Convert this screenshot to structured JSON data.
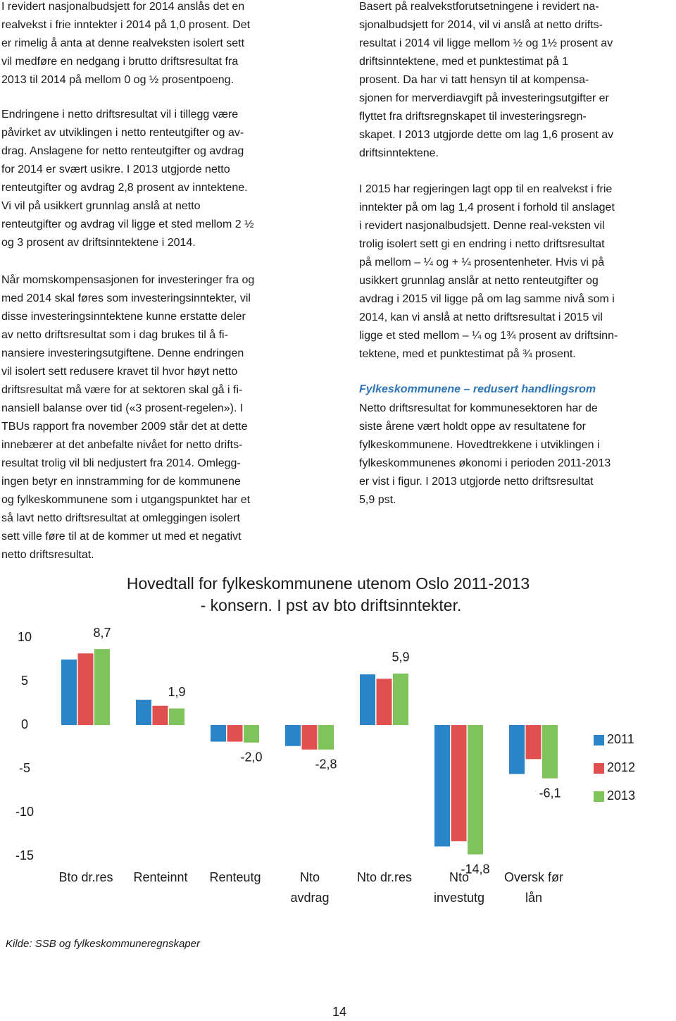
{
  "left_column": {
    "paragraphs": [
      [
        "I revidert nasjonalbudsjett for 2014 anslås det en",
        "realvekst i frie inntekter i 2014 på 1,0 prosent. Det",
        "er rimelig å anta at denne realveksten isolert sett",
        "vil medføre en nedgang i brutto driftsresultat fra",
        "2013 til 2014 på mellom 0 og ½ prosentpoeng."
      ],
      [
        "Endringene i netto driftsresultat vil i tillegg være",
        "påvirket av utviklingen i netto renteutgifter og av-",
        "drag. Anslagene for netto renteutgifter og avdrag",
        "for 2014 er svært usikre. I 2013 utgjorde netto",
        "renteutgifter og avdrag 2,8 prosent av inntektene.",
        "Vi vil på usikkert grunnlag anslå at netto",
        "renteutgifter og avdrag vil ligge et sted mellom 2 ½",
        "og 3 prosent av driftsinntektene i 2014."
      ],
      [
        "Når momskompensasjonen for investeringer fra og",
        "med 2014 skal føres som investeringsinntekter, vil",
        "disse investeringsinntektene kunne erstatte deler",
        "av netto driftsresultat som i dag brukes til å fi-",
        "nansiere investeringsutgiftene. Denne endringen",
        "vil isolert sett redusere kravet til hvor høyt netto",
        "driftsresultat må være for at sektoren skal gå i fi-",
        "nansiell balanse over tid («3 prosent-regelen»). I",
        "TBUs rapport fra november 2009 står det at dette",
        "innebærer at det anbefalte nivået for netto drifts-",
        "resultat trolig vil bli nedjustert fra 2014. Omlegg-",
        "ingen betyr en innstramming for de kommunene",
        "og fylkeskommunene som i utgangspunktet har et",
        "så lavt netto driftsresultat at omleggingen isolert",
        "sett ville føre til at de kommer ut med et negativt",
        "netto driftsresultat."
      ]
    ]
  },
  "right_column": {
    "paragraphs": [
      [
        "Basert på realvekstforutsetningene i revidert na-",
        "sjonalbudsjett for 2014, vil vi anslå at netto drifts-",
        "resultat i 2014 vil ligge mellom ½ og 1½ prosent av",
        "driftsinntektene, med et punktestimat på 1",
        "prosent. Da har vi tatt hensyn til at kompensa-",
        "sjonen for merverdiavgift på investeringsutgifter er",
        "flyttet fra driftsregnskapet til investeringsregn-",
        "skapet. I 2013 utgjorde dette om lag 1,6 prosent av",
        "driftsinntektene."
      ],
      [
        "I 2015 har regjeringen lagt opp til en realvekst i frie",
        "inntekter på om lag 1,4 prosent i forhold til anslaget",
        "i revidert nasjonalbudsjett. Denne real-veksten vil",
        "trolig isolert sett gi en endring i netto driftsresultat",
        "på mellom – ¼ og + ¼ prosentenheter. Hvis vi på",
        "usikkert grunnlag anslår at netto renteutgifter og",
        "avdrag i 2015 vil ligge på om lag samme nivå som i",
        "2014, kan vi anslå at netto driftsresultat i 2015 vil",
        "ligge et sted mellom – ¼ og 1¾ prosent av driftsinn-",
        "tektene, med et punktestimat på ¾ prosent."
      ]
    ],
    "heading": "Fylkeskommunene – redusert handlingsrom",
    "closing_paragraph": [
      "Netto driftsresultat for kommunesektoren har de",
      "siste årene vært holdt oppe av resultatene for",
      "fylkeskommunene. Hovedtrekkene i utviklingen i",
      "fylkeskommunenes økonomi i perioden 2011-2013",
      "er vist i figur. I 2013 utgjorde netto driftsresultat",
      "5,9 pst."
    ]
  },
  "chart_data": {
    "type": "bar",
    "title": [
      "Hovedtall for fylkeskommunene utenom Oslo 2011-2013",
      "- konsern. I pst av bto driftsinntekter."
    ],
    "categories": [
      [
        "Bto dr.res"
      ],
      [
        "Renteinnt"
      ],
      [
        "Renteutg"
      ],
      [
        "Nto",
        "avdrag"
      ],
      [
        "Nto dr.res"
      ],
      [
        "Nto",
        "investutg"
      ],
      [
        "Oversk før",
        "lån"
      ]
    ],
    "series": [
      {
        "name": "2011",
        "color": "#2a85c8",
        "values": [
          7.5,
          2.9,
          -1.9,
          -2.4,
          5.8,
          -13.9,
          -5.6
        ]
      },
      {
        "name": "2012",
        "color": "#e0504f",
        "values": [
          8.2,
          2.2,
          -1.9,
          -2.8,
          5.3,
          -13.3,
          -3.9
        ]
      },
      {
        "name": "2013",
        "color": "#7fc45a",
        "values": [
          8.7,
          1.9,
          -2.0,
          -2.8,
          5.9,
          -14.8,
          -6.1
        ],
        "value_labels": [
          "8,7",
          "1,9",
          "-2,0",
          "-2,8",
          "5,9",
          "-14,8",
          "-6,1"
        ]
      }
    ],
    "ylim": [
      -15,
      10
    ],
    "yticks": [
      -15,
      -10,
      -5,
      0,
      5,
      10
    ],
    "grid": false,
    "legend": "right"
  },
  "source": "Kilde: SSB og fylkeskommuneregnskaper",
  "page_number": "14"
}
